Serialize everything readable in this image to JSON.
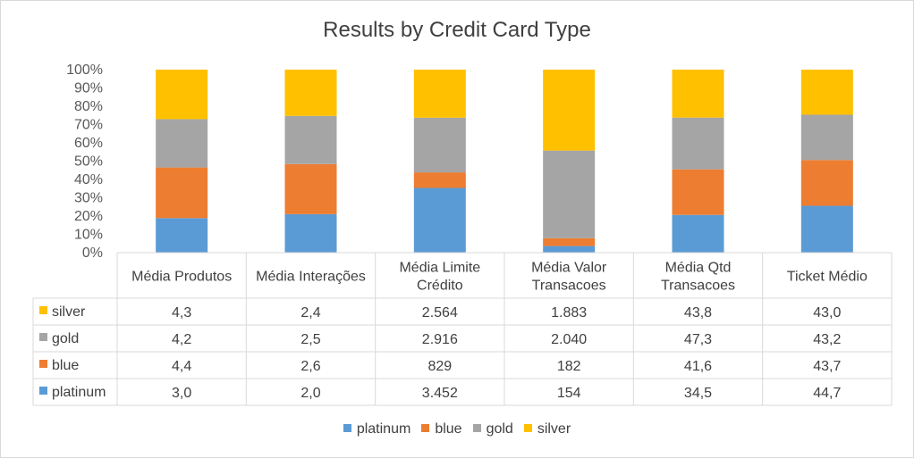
{
  "chart_data": {
    "type": "bar",
    "stacked": "percent",
    "title": "Results by Credit Card Type",
    "categories": [
      [
        "Média Produtos"
      ],
      [
        "Média Interações"
      ],
      [
        "Média Limite",
        "Crédito"
      ],
      [
        "Média Valor",
        "Transacoes"
      ],
      [
        "Média Qtd",
        "Transacoes"
      ],
      [
        "Ticket Médio"
      ]
    ],
    "y_ticks": [
      "0%",
      "10%",
      "20%",
      "30%",
      "40%",
      "50%",
      "60%",
      "70%",
      "80%",
      "90%",
      "100%"
    ],
    "ylim": [
      0,
      100
    ],
    "series": [
      {
        "name": "platinum",
        "color": "#5b9bd5",
        "values": [
          3.0,
          2.0,
          3452,
          154,
          34.5,
          44.7
        ],
        "labels": [
          "3,0",
          "2,0",
          "3.452",
          "154",
          "34,5",
          "44,7"
        ]
      },
      {
        "name": "blue",
        "color": "#ed7d31",
        "values": [
          4.4,
          2.6,
          829,
          182,
          41.6,
          43.7
        ],
        "labels": [
          "4,4",
          "2,6",
          "829",
          "182",
          "41,6",
          "43,7"
        ]
      },
      {
        "name": "gold",
        "color": "#a5a5a5",
        "values": [
          4.2,
          2.5,
          2916,
          2040,
          47.3,
          43.2
        ],
        "labels": [
          "4,2",
          "2,5",
          "2.916",
          "2.040",
          "47,3",
          "43,2"
        ]
      },
      {
        "name": "silver",
        "color": "#ffc000",
        "values": [
          4.3,
          2.4,
          2564,
          1883,
          43.8,
          43.0
        ],
        "labels": [
          "4,3",
          "2,4",
          "2.564",
          "1.883",
          "43,8",
          "43,0"
        ]
      }
    ],
    "table_row_order": [
      "silver",
      "gold",
      "blue",
      "platinum"
    ],
    "legend_position": "bottom",
    "grid": false
  }
}
